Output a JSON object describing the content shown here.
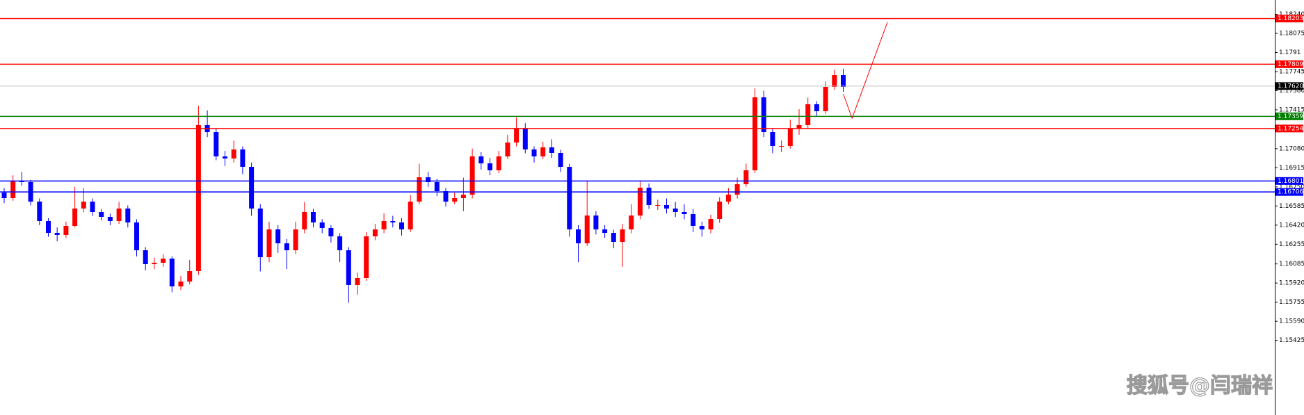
{
  "chart_data": {
    "type": "candlestick",
    "ylim": [
      1.14781,
      1.18363
    ],
    "yticks": [
      {
        "value": 1.1824,
        "label": "1.18240"
      },
      1.18075,
      1.1791,
      1.17745,
      {
        "value": 1.1758,
        "label": "1.17580"
      },
      1.17415,
      {
        "value": 1.1708,
        "label": "1.17080"
      },
      1.16915,
      {
        "value": 1.1675,
        "label": "1.16750"
      },
      1.16585,
      {
        "value": 1.1642,
        "label": "1.16420"
      },
      1.16255,
      1.16085,
      {
        "value": 1.1592,
        "label": "1.15920"
      },
      1.15755,
      {
        "value": 1.1559,
        "label": "1.15590"
      },
      1.15425
    ],
    "up_color": "#ff0000",
    "down_color": "#0000ff",
    "candles": [
      [
        1.167,
        1.1674,
        1.1661,
        1.16653
      ],
      [
        1.16653,
        1.1685,
        1.1663,
        1.16803
      ],
      [
        1.16803,
        1.1688,
        1.1676,
        1.16791
      ],
      [
        1.16791,
        1.1681,
        1.1659,
        1.16623
      ],
      [
        1.16623,
        1.1665,
        1.1642,
        1.16455
      ],
      [
        1.16455,
        1.1648,
        1.1632,
        1.16353
      ],
      [
        1.16353,
        1.164,
        1.1628,
        1.16335
      ],
      [
        1.16335,
        1.1645,
        1.1631,
        1.16413
      ],
      [
        1.16413,
        1.1675,
        1.164,
        1.16563
      ],
      [
        1.16563,
        1.1674,
        1.1653,
        1.16623
      ],
      [
        1.16623,
        1.1665,
        1.165,
        1.16533
      ],
      [
        1.16533,
        1.1656,
        1.1646,
        1.16491
      ],
      [
        1.16491,
        1.1652,
        1.1642,
        1.16455
      ],
      [
        1.16455,
        1.1662,
        1.1643,
        1.16563
      ],
      [
        1.16563,
        1.1659,
        1.164,
        1.16443
      ],
      [
        1.16443,
        1.1647,
        1.1615,
        1.16203
      ],
      [
        1.16203,
        1.1623,
        1.1603,
        1.16083
      ],
      [
        1.16083,
        1.1614,
        1.1604,
        1.16095
      ],
      [
        1.16095,
        1.1617,
        1.1606,
        1.16131
      ],
      [
        1.16131,
        1.1615,
        1.1584,
        1.15891
      ],
      [
        1.15891,
        1.1598,
        1.1586,
        1.15933
      ],
      [
        1.15933,
        1.1612,
        1.1591,
        1.16023
      ],
      [
        1.16023,
        1.1745,
        1.1599,
        1.17283
      ],
      [
        1.17283,
        1.1741,
        1.1718,
        1.17223
      ],
      [
        1.17223,
        1.1725,
        1.1698,
        1.17013
      ],
      [
        1.17013,
        1.1706,
        1.1693,
        1.16995
      ],
      [
        1.16995,
        1.1715,
        1.1696,
        1.17073
      ],
      [
        1.17073,
        1.171,
        1.1686,
        1.16923
      ],
      [
        1.16923,
        1.1696,
        1.165,
        1.16563
      ],
      [
        1.16563,
        1.166,
        1.1602,
        1.16143
      ],
      [
        1.16143,
        1.1645,
        1.161,
        1.16383
      ],
      [
        1.16383,
        1.1642,
        1.1618,
        1.16263
      ],
      [
        1.16263,
        1.163,
        1.1604,
        1.16203
      ],
      [
        1.16203,
        1.1645,
        1.1617,
        1.16383
      ],
      [
        1.16383,
        1.1662,
        1.1635,
        1.16533
      ],
      [
        1.16533,
        1.1656,
        1.164,
        1.16443
      ],
      [
        1.16443,
        1.1647,
        1.1635,
        1.16395
      ],
      [
        1.16395,
        1.1642,
        1.1627,
        1.16323
      ],
      [
        1.16323,
        1.1635,
        1.161,
        1.16203
      ],
      [
        1.16203,
        1.1623,
        1.1575,
        1.15903
      ],
      [
        1.15903,
        1.1601,
        1.1582,
        1.15963
      ],
      [
        1.15963,
        1.1636,
        1.1594,
        1.16323
      ],
      [
        1.16323,
        1.1643,
        1.1629,
        1.16383
      ],
      [
        1.16383,
        1.1652,
        1.1635,
        1.16455
      ],
      [
        1.16455,
        1.165,
        1.164,
        1.16443
      ],
      [
        1.16443,
        1.1648,
        1.1633,
        1.16383
      ],
      [
        1.16383,
        1.1668,
        1.1636,
        1.16623
      ],
      [
        1.16623,
        1.1695,
        1.166,
        1.16833
      ],
      [
        1.16833,
        1.1688,
        1.1675,
        1.16791
      ],
      [
        1.16791,
        1.1682,
        1.1667,
        1.16713
      ],
      [
        1.16713,
        1.1674,
        1.1658,
        1.16623
      ],
      [
        1.16623,
        1.167,
        1.166,
        1.16653
      ],
      [
        1.16653,
        1.1683,
        1.1654,
        1.16683
      ],
      [
        1.16683,
        1.1708,
        1.1665,
        1.17013
      ],
      [
        1.17013,
        1.1705,
        1.169,
        1.16953
      ],
      [
        1.16953,
        1.17,
        1.1685,
        1.16893
      ],
      [
        1.16893,
        1.1706,
        1.1687,
        1.17013
      ],
      [
        1.17013,
        1.172,
        1.1699,
        1.17133
      ],
      [
        1.17133,
        1.1735,
        1.171,
        1.17253
      ],
      [
        1.17253,
        1.173,
        1.1704,
        1.17073
      ],
      [
        1.17073,
        1.171,
        1.1696,
        1.17013
      ],
      [
        1.17013,
        1.1714,
        1.1699,
        1.17091
      ],
      [
        1.17091,
        1.1716,
        1.17,
        1.17043
      ],
      [
        1.17043,
        1.1707,
        1.1688,
        1.16923
      ],
      [
        1.16923,
        1.1695,
        1.1632,
        1.16383
      ],
      [
        1.16383,
        1.1642,
        1.161,
        1.16263
      ],
      [
        1.16263,
        1.168,
        1.1624,
        1.16503
      ],
      [
        1.16503,
        1.1654,
        1.1634,
        1.16383
      ],
      [
        1.16383,
        1.1642,
        1.1631,
        1.16353
      ],
      [
        1.16353,
        1.1638,
        1.1622,
        1.16275
      ],
      [
        1.16275,
        1.1643,
        1.1606,
        1.16383
      ],
      [
        1.16383,
        1.166,
        1.1635,
        1.16503
      ],
      [
        1.16503,
        1.168,
        1.1647,
        1.16743
      ],
      [
        1.16743,
        1.1678,
        1.1656,
        1.16593
      ],
      [
        1.16593,
        1.1664,
        1.1655,
        1.16593
      ],
      [
        1.16593,
        1.1665,
        1.1652,
        1.16563
      ],
      [
        1.16563,
        1.1662,
        1.1649,
        1.16533
      ],
      [
        1.16533,
        1.166,
        1.1647,
        1.16515
      ],
      [
        1.16515,
        1.1656,
        1.1636,
        1.16413
      ],
      [
        1.16413,
        1.1645,
        1.1632,
        1.16383
      ],
      [
        1.16383,
        1.1651,
        1.1635,
        1.16473
      ],
      [
        1.16473,
        1.1666,
        1.1644,
        1.16623
      ],
      [
        1.16623,
        1.1674,
        1.166,
        1.16683
      ],
      [
        1.16683,
        1.1683,
        1.1665,
        1.16773
      ],
      [
        1.16773,
        1.1695,
        1.1675,
        1.16893
      ],
      [
        1.16893,
        1.176,
        1.1687,
        1.17523
      ],
      [
        1.17523,
        1.1758,
        1.1718,
        1.17223
      ],
      [
        1.17223,
        1.1725,
        1.1704,
        1.17103
      ],
      [
        1.17103,
        1.1715,
        1.1705,
        1.17103
      ],
      [
        1.17103,
        1.1733,
        1.1708,
        1.17253
      ],
      [
        1.17253,
        1.1742,
        1.172,
        1.17283
      ],
      [
        1.17283,
        1.1752,
        1.1725,
        1.17463
      ],
      [
        1.17463,
        1.1749,
        1.1736,
        1.17403
      ],
      [
        1.17403,
        1.1766,
        1.1738,
        1.17613
      ],
      [
        1.17613,
        1.1776,
        1.1759,
        1.17715
      ],
      [
        1.17715,
        1.1777,
        1.1757,
        1.17613
      ]
    ],
    "levels": [
      {
        "value": 1.18203,
        "color": "#ff0000"
      },
      {
        "value": 1.17809,
        "color": "#ff0000"
      },
      {
        "value": 1.1762,
        "label": "1.17620",
        "color": "#000000",
        "line_color": "#c0c0c0"
      },
      {
        "value": 1.17359,
        "color": "#008000"
      },
      {
        "value": 1.17254,
        "color": "#ff0000"
      },
      {
        "value": 1.16801,
        "color": "#0000ff"
      },
      {
        "value": 1.16706,
        "color": "#0000ff"
      }
    ],
    "projection": {
      "color": "#ff0000",
      "x": [
        95,
        96,
        100
      ],
      "values": [
        1.17553,
        1.17343,
        1.18171
      ]
    },
    "watermark": "搜狐号@闫瑞祥"
  }
}
